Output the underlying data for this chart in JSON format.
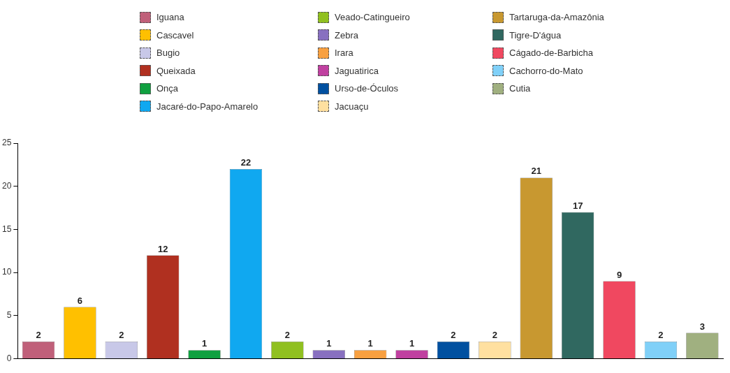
{
  "chart_data": {
    "type": "bar",
    "categories": [
      null,
      null,
      null,
      null,
      null,
      null,
      null,
      null,
      null,
      null,
      null,
      null,
      null,
      null,
      null,
      null,
      null
    ],
    "series": [
      {
        "name": "Iguana",
        "color": "#c0607a",
        "values": [
          2,
          null,
          null,
          null,
          null,
          null,
          null,
          null,
          null,
          null,
          null,
          null,
          null,
          null,
          null,
          null,
          null
        ]
      },
      {
        "name": "Cascavel",
        "color": "#ffc000",
        "values": [
          null,
          6,
          null,
          null,
          null,
          null,
          null,
          null,
          null,
          null,
          null,
          null,
          null,
          null,
          null,
          null,
          null
        ]
      },
      {
        "name": "Bugio",
        "color": "#c8c8e8",
        "values": [
          null,
          null,
          2,
          null,
          null,
          null,
          null,
          null,
          null,
          null,
          null,
          null,
          null,
          null,
          null,
          null,
          null
        ]
      },
      {
        "name": "Queixada",
        "color": "#b03020",
        "values": [
          null,
          null,
          null,
          12,
          null,
          null,
          null,
          null,
          null,
          null,
          null,
          null,
          null,
          null,
          null,
          null,
          null
        ]
      },
      {
        "name": "Onça",
        "color": "#10a040",
        "values": [
          null,
          null,
          null,
          null,
          1,
          null,
          null,
          null,
          null,
          null,
          null,
          null,
          null,
          null,
          null,
          null,
          null
        ]
      },
      {
        "name": "Jacaré-do-Papo-Amarelo",
        "color": "#10a8f0",
        "values": [
          null,
          null,
          null,
          null,
          null,
          22,
          null,
          null,
          null,
          null,
          null,
          null,
          null,
          null,
          null,
          null,
          null
        ]
      },
      {
        "name": "Veado-Catingueiro",
        "color": "#90c020",
        "values": [
          null,
          null,
          null,
          null,
          null,
          null,
          2,
          null,
          null,
          null,
          null,
          null,
          null,
          null,
          null,
          null,
          null
        ]
      },
      {
        "name": "Zebra",
        "color": "#8870c0",
        "values": [
          null,
          null,
          null,
          null,
          null,
          null,
          null,
          1,
          null,
          null,
          null,
          null,
          null,
          null,
          null,
          null,
          null
        ]
      },
      {
        "name": "Irara",
        "color": "#f8a040",
        "values": [
          null,
          null,
          null,
          null,
          null,
          null,
          null,
          null,
          1,
          null,
          null,
          null,
          null,
          null,
          null,
          null,
          null
        ]
      },
      {
        "name": "Jaguatirica",
        "color": "#c040a0",
        "values": [
          null,
          null,
          null,
          null,
          null,
          null,
          null,
          null,
          null,
          1,
          null,
          null,
          null,
          null,
          null,
          null,
          null
        ]
      },
      {
        "name": "Urso-de-Óculos",
        "color": "#0050a0",
        "values": [
          null,
          null,
          null,
          null,
          null,
          null,
          null,
          null,
          null,
          null,
          2,
          null,
          null,
          null,
          null,
          null,
          null
        ]
      },
      {
        "name": "Jacuaçu",
        "color": "#ffe0a0",
        "values": [
          null,
          null,
          null,
          null,
          null,
          null,
          null,
          null,
          null,
          null,
          null,
          2,
          null,
          null,
          null,
          null,
          null
        ]
      },
      {
        "name": "Tartaruga-da-Amazônia",
        "color": "#c89830",
        "values": [
          null,
          null,
          null,
          null,
          null,
          null,
          null,
          null,
          null,
          null,
          null,
          null,
          21,
          null,
          null,
          null,
          null
        ]
      },
      {
        "name": "Tigre-D'água",
        "color": "#306860",
        "values": [
          null,
          null,
          null,
          null,
          null,
          null,
          null,
          null,
          null,
          null,
          null,
          null,
          null,
          17,
          null,
          null,
          null
        ]
      },
      {
        "name": "Cágado-de-Barbicha",
        "color": "#f04860",
        "values": [
          null,
          null,
          null,
          null,
          null,
          null,
          null,
          null,
          null,
          null,
          null,
          null,
          null,
          null,
          9,
          null,
          null
        ]
      },
      {
        "name": "Cachorro-do-Mato",
        "color": "#80d0f8",
        "values": [
          null,
          null,
          null,
          null,
          null,
          null,
          null,
          null,
          null,
          null,
          null,
          null,
          null,
          null,
          null,
          2,
          null
        ]
      },
      {
        "name": "Cutia",
        "color": "#a0b080",
        "values": [
          null,
          null,
          null,
          null,
          null,
          null,
          null,
          null,
          null,
          null,
          null,
          null,
          null,
          null,
          null,
          null,
          3
        ]
      }
    ],
    "ylim": [
      0,
      25
    ],
    "yticks": [
      0,
      5,
      10,
      15,
      20,
      25
    ],
    "grid": false,
    "legend": "top",
    "data_labels": true
  }
}
